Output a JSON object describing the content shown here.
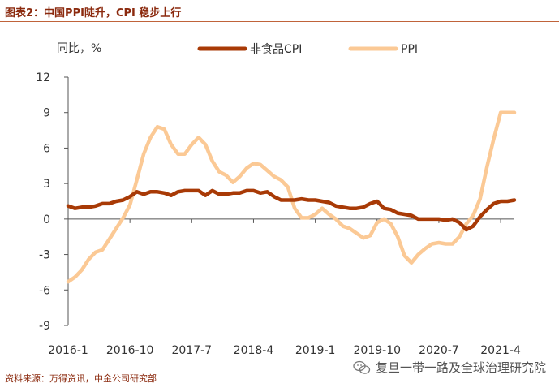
{
  "figure_title": "图表2：中国PPI陡升，CPI 稳步上行",
  "source_note": "资料来源：万得资讯，中金公司研究部",
  "watermark": "复旦一带一路及全球治理研究院",
  "colors": {
    "cpi": "#a83a06",
    "ppi": "#fbc995",
    "accent": "#8b2a0e",
    "axis": "#333333"
  },
  "chart_data": {
    "type": "line",
    "title": "中国PPI陡升，CPI 稳步上行",
    "ylabel": "同比，%",
    "xlabel": "",
    "ylim": [
      -9,
      12
    ],
    "yticks": [
      -9,
      -6,
      -3,
      0,
      3,
      6,
      9,
      12
    ],
    "x_tick_labels": [
      "2016-1",
      "2016-10",
      "2017-7",
      "2018-4",
      "2019-1",
      "2019-10",
      "2020-7",
      "2021-4"
    ],
    "x_tick_positions": [
      0,
      9,
      18,
      27,
      36,
      45,
      54,
      63
    ],
    "x_range": [
      0,
      65
    ],
    "legend_position": "top",
    "series": [
      {
        "name": "非食品CPI",
        "color": "#a83a06",
        "x": [
          0,
          1,
          2,
          3,
          4,
          5,
          6,
          7,
          8,
          9,
          10,
          11,
          12,
          13,
          14,
          15,
          16,
          17,
          18,
          19,
          20,
          21,
          22,
          23,
          24,
          25,
          26,
          27,
          28,
          29,
          30,
          31,
          32,
          33,
          34,
          35,
          36,
          37,
          38,
          39,
          40,
          41,
          42,
          43,
          44,
          45,
          46,
          47,
          48,
          49,
          50,
          51,
          52,
          53,
          54,
          55,
          56,
          57,
          58,
          59,
          60,
          61,
          62,
          63,
          64,
          65
        ],
        "values": [
          1.1,
          0.9,
          1.0,
          1.0,
          1.1,
          1.3,
          1.3,
          1.5,
          1.6,
          1.9,
          2.3,
          2.1,
          2.3,
          2.3,
          2.2,
          2.0,
          2.3,
          2.4,
          2.4,
          2.4,
          2.0,
          2.4,
          2.1,
          2.1,
          2.2,
          2.2,
          2.4,
          2.4,
          2.2,
          2.3,
          1.9,
          1.6,
          1.6,
          1.6,
          1.7,
          1.6,
          1.6,
          1.5,
          1.4,
          1.1,
          1.0,
          0.9,
          0.9,
          1.0,
          1.3,
          1.5,
          0.9,
          0.8,
          0.5,
          0.4,
          0.3,
          0.0,
          0.0,
          0.0,
          0.0,
          -0.1,
          0.0,
          -0.3,
          -0.9,
          -0.6,
          0.2,
          0.8,
          1.3,
          1.5,
          1.5,
          1.6
        ]
      },
      {
        "name": "PPI",
        "color": "#fbc995",
        "x": [
          0,
          1,
          2,
          3,
          4,
          5,
          6,
          7,
          8,
          9,
          10,
          11,
          12,
          13,
          14,
          15,
          16,
          17,
          18,
          19,
          20,
          21,
          22,
          23,
          24,
          25,
          26,
          27,
          28,
          29,
          30,
          31,
          32,
          33,
          34,
          35,
          36,
          37,
          38,
          39,
          40,
          41,
          42,
          43,
          44,
          45,
          46,
          47,
          48,
          49,
          50,
          51,
          52,
          53,
          54,
          55,
          56,
          57,
          58,
          59,
          60,
          61,
          62,
          63,
          64,
          65
        ],
        "values": [
          -5.3,
          -4.9,
          -4.3,
          -3.4,
          -2.8,
          -2.6,
          -1.7,
          -0.8,
          0.1,
          1.2,
          3.3,
          5.5,
          6.9,
          7.8,
          7.6,
          6.3,
          5.5,
          5.5,
          6.3,
          6.9,
          6.3,
          4.9,
          4.0,
          3.7,
          3.1,
          3.6,
          4.3,
          4.7,
          4.6,
          4.1,
          3.6,
          3.3,
          2.7,
          0.9,
          0.1,
          0.1,
          0.4,
          0.9,
          0.4,
          0.0,
          -0.6,
          -0.8,
          -1.2,
          -1.6,
          -1.4,
          -0.3,
          0.0,
          -0.4,
          -1.5,
          -3.1,
          -3.7,
          -3.0,
          -2.5,
          -2.1,
          -2.0,
          -2.1,
          -2.1,
          -1.5,
          -0.4,
          0.3,
          1.7,
          4.4,
          6.8,
          9.0,
          9.0,
          9.0
        ]
      }
    ]
  }
}
